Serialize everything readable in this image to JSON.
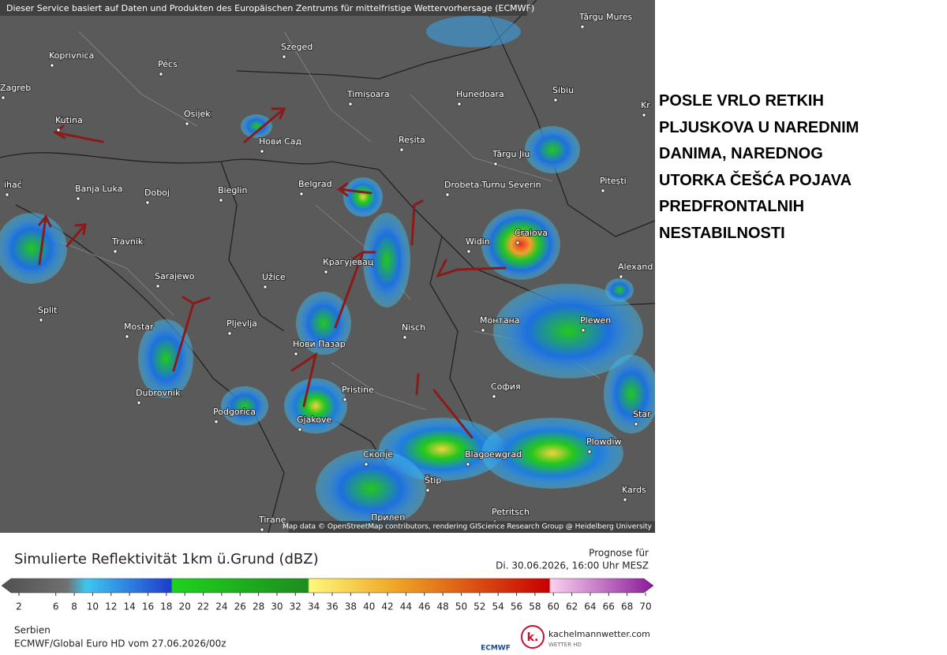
{
  "map": {
    "header": "Dieser Service basiert auf Daten und Produkten des Europäischen Zentrums für mittelfristige Wettervorhersage (ECMWF)",
    "attribution": "Map data © OpenStreetMap contributors, rendering GIScience Research Group @ Heidelberg University",
    "cities": [
      "Koprivnica",
      "Pécs",
      "Szeged",
      "Târgu Mureș",
      "Zagreb",
      "Osijek",
      "Kutina",
      "Нови Сад",
      "Timișoara",
      "Hunedoara",
      "Sibiu",
      "Reșita",
      "Târgu Jiu",
      "Pitești",
      "Banja Luka",
      "Doboj",
      "Bieglin",
      "Belgrad",
      "Drobeta-Turnu Severin",
      "Craiova",
      "ihać",
      "Travnik",
      "Sarajewo",
      "Užice",
      "Крагујевац",
      "Widin",
      "Alexand",
      "Split",
      "Mostar",
      "Pljevlja",
      "Нови Пазар",
      "Nisch",
      "Монтана",
      "Plewen",
      "Dubrovnik",
      "Podgorica",
      "Pristine",
      "София",
      "Gjakove",
      "Скопје",
      "Blagoewgrad",
      "Plowdiw",
      "Star",
      "Štip",
      "Kards",
      "Tirane",
      "Прилеп",
      "Petritsch",
      "Kr"
    ]
  },
  "annotation": [
    "POSLE VRLO RETKIH",
    "PLJUSKOVA U NAREDNIM",
    "DANIMA, NAREDNOG",
    "UTORKA ČEŠĆA POJAVA",
    "PREDFRONTALNIH",
    "NESTABILNOSTI"
  ],
  "legend": {
    "title": "Simulierte Reflektivität 1km ü.Grund (dBZ)",
    "forecast_label": "Prognose für",
    "forecast_time": "Di. 30.06.2026, 16:00 Uhr MESZ",
    "ticks": [
      2,
      6,
      8,
      10,
      12,
      14,
      16,
      18,
      20,
      22,
      24,
      26,
      28,
      30,
      32,
      34,
      36,
      38,
      40,
      42,
      44,
      46,
      48,
      50,
      52,
      54,
      56,
      58,
      60,
      62,
      64,
      66,
      68,
      70
    ],
    "region": "Serbien",
    "model_run": "ECMWF/Global Euro HD vom  27.06.2026/00z",
    "ecmwf_logo": "ECMWF",
    "site": "kachelmannwetter.com",
    "site_sub": "WETTER HD"
  }
}
